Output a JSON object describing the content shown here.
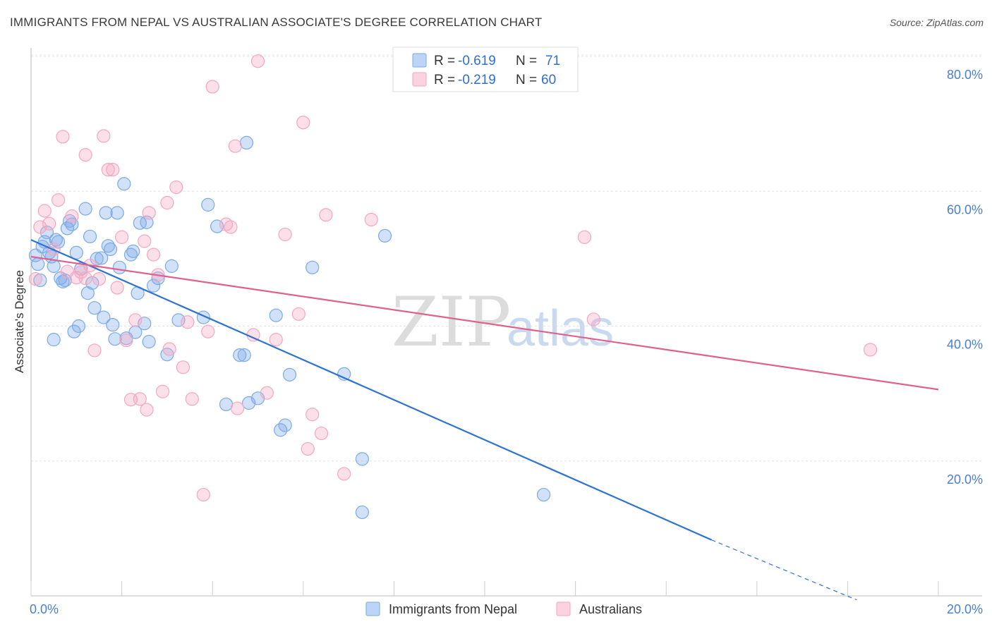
{
  "title": "IMMIGRANTS FROM NEPAL VS AUSTRALIAN ASSOCIATE'S DEGREE CORRELATION CHART",
  "source": "Source: ZipAtlas.com",
  "watermark": {
    "zip": "ZIP",
    "atlas": "atlas"
  },
  "legend": {
    "rows": [
      {
        "r_label": "R =",
        "r_value": "-0.619",
        "n_label": "N =",
        "n_value": "71"
      },
      {
        "r_label": "R =",
        "r_value": "-0.219",
        "n_label": "N =",
        "n_value": "60"
      }
    ]
  },
  "chart_data": {
    "type": "scatter",
    "title": "IMMIGRANTS FROM NEPAL VS AUSTRALIAN ASSOCIATE'S DEGREE CORRELATION CHART",
    "xlabel": "",
    "ylabel": "Associate's Degree",
    "xlim": [
      0,
      20
    ],
    "ylim": [
      0,
      82
    ],
    "x_ticks": [
      {
        "value": 0,
        "label": "0.0%"
      },
      {
        "value": 20,
        "label": "20.0%"
      }
    ],
    "y_ticks": [
      {
        "value": 20,
        "label": "20.0%"
      },
      {
        "value": 40,
        "label": "40.0%"
      },
      {
        "value": 60,
        "label": "60.0%"
      },
      {
        "value": 80,
        "label": "80.0%"
      }
    ],
    "grid": true,
    "legend_position": "bottom",
    "series": [
      {
        "name": "Immigrants from Nepal",
        "color": "#7aaae8",
        "line_color": "#2e72d2",
        "R": -0.619,
        "N": 71,
        "trend": {
          "x0": 0.0,
          "y0": 52.8,
          "x1": 15.0,
          "y1": 8.3,
          "dash_to_x": 18.2,
          "dash_to_y": -0.6
        },
        "points": [
          [
            0.1,
            50.5
          ],
          [
            0.15,
            49.2
          ],
          [
            0.2,
            46.8
          ],
          [
            0.25,
            51.8
          ],
          [
            0.3,
            52.5
          ],
          [
            0.35,
            53.9
          ],
          [
            0.4,
            50.9
          ],
          [
            0.45,
            50.3
          ],
          [
            0.5,
            48.9
          ],
          [
            0.55,
            52.8
          ],
          [
            0.6,
            52.5
          ],
          [
            0.65,
            47.1
          ],
          [
            0.7,
            46.6
          ],
          [
            0.75,
            46.8
          ],
          [
            0.8,
            54.5
          ],
          [
            0.85,
            55.6
          ],
          [
            0.9,
            55.1
          ],
          [
            0.95,
            39.2
          ],
          [
            1.0,
            50.9
          ],
          [
            1.05,
            40.0
          ],
          [
            1.1,
            48.5
          ],
          [
            1.2,
            57.4
          ],
          [
            1.25,
            44.9
          ],
          [
            1.3,
            53.3
          ],
          [
            1.35,
            46.4
          ],
          [
            1.4,
            42.7
          ],
          [
            1.45,
            50.0
          ],
          [
            1.55,
            50.1
          ],
          [
            1.6,
            41.3
          ],
          [
            1.65,
            56.8
          ],
          [
            1.7,
            51.9
          ],
          [
            1.75,
            51.4
          ],
          [
            1.8,
            40.2
          ],
          [
            1.85,
            38.1
          ],
          [
            1.9,
            56.8
          ],
          [
            1.95,
            48.7
          ],
          [
            2.05,
            61.1
          ],
          [
            2.1,
            38.2
          ],
          [
            2.2,
            50.6
          ],
          [
            2.25,
            51.1
          ],
          [
            2.3,
            39.1
          ],
          [
            2.35,
            44.9
          ],
          [
            2.4,
            55.3
          ],
          [
            2.5,
            40.4
          ],
          [
            2.55,
            55.4
          ],
          [
            2.6,
            37.7
          ],
          [
            2.7,
            46.0
          ],
          [
            2.8,
            47.1
          ],
          [
            3.0,
            35.8
          ],
          [
            3.1,
            48.9
          ],
          [
            3.25,
            40.9
          ],
          [
            3.8,
            41.3
          ],
          [
            3.9,
            58.0
          ],
          [
            4.1,
            54.8
          ],
          [
            4.3,
            28.4
          ],
          [
            4.6,
            35.7
          ],
          [
            4.7,
            35.7
          ],
          [
            4.75,
            67.2
          ],
          [
            4.8,
            28.6
          ],
          [
            5.0,
            29.3
          ],
          [
            5.4,
            41.6
          ],
          [
            5.5,
            24.6
          ],
          [
            5.6,
            25.3
          ],
          [
            5.7,
            32.8
          ],
          [
            6.2,
            48.7
          ],
          [
            6.9,
            32.9
          ],
          [
            7.3,
            20.3
          ],
          [
            7.3,
            12.4
          ],
          [
            7.8,
            53.4
          ],
          [
            11.3,
            15.0
          ],
          [
            0.5,
            38.0
          ]
        ]
      },
      {
        "name": "Australians",
        "color": "#f4a6c0",
        "line_color": "#e0608e",
        "R": -0.219,
        "N": 60,
        "trend": {
          "x0": 0.0,
          "y0": 50.3,
          "x1": 20.0,
          "y1": 30.6
        },
        "points": [
          [
            0.1,
            47.0
          ],
          [
            0.2,
            54.7
          ],
          [
            0.3,
            57.1
          ],
          [
            0.4,
            55.2
          ],
          [
            0.5,
            51.4
          ],
          [
            0.6,
            58.7
          ],
          [
            0.7,
            68.1
          ],
          [
            0.8,
            48.1
          ],
          [
            0.9,
            56.3
          ],
          [
            1.0,
            47.2
          ],
          [
            1.1,
            48.0
          ],
          [
            1.2,
            65.4
          ],
          [
            1.3,
            49.0
          ],
          [
            1.4,
            36.4
          ],
          [
            1.5,
            47.0
          ],
          [
            1.6,
            68.2
          ],
          [
            1.7,
            63.2
          ],
          [
            1.8,
            63.2
          ],
          [
            1.9,
            45.7
          ],
          [
            2.0,
            53.2
          ],
          [
            2.1,
            37.9
          ],
          [
            2.2,
            29.1
          ],
          [
            2.3,
            40.9
          ],
          [
            2.4,
            29.2
          ],
          [
            2.5,
            52.6
          ],
          [
            2.55,
            27.6
          ],
          [
            2.6,
            56.8
          ],
          [
            2.7,
            50.6
          ],
          [
            2.8,
            47.6
          ],
          [
            2.9,
            30.3
          ],
          [
            3.0,
            58.3
          ],
          [
            3.05,
            36.6
          ],
          [
            3.2,
            60.6
          ],
          [
            3.35,
            33.9
          ],
          [
            3.45,
            40.6
          ],
          [
            3.55,
            29.2
          ],
          [
            3.8,
            15.0
          ],
          [
            3.9,
            39.2
          ],
          [
            4.0,
            75.5
          ],
          [
            4.3,
            55.1
          ],
          [
            4.4,
            54.7
          ],
          [
            4.5,
            66.7
          ],
          [
            4.55,
            27.8
          ],
          [
            4.9,
            38.7
          ],
          [
            5.0,
            79.3
          ],
          [
            5.2,
            30.1
          ],
          [
            5.4,
            38.0
          ],
          [
            5.6,
            53.6
          ],
          [
            5.9,
            41.8
          ],
          [
            6.0,
            70.2
          ],
          [
            6.1,
            21.8
          ],
          [
            6.2,
            26.9
          ],
          [
            6.4,
            24.1
          ],
          [
            6.5,
            56.5
          ],
          [
            6.9,
            18.1
          ],
          [
            7.5,
            55.8
          ],
          [
            12.2,
            53.2
          ],
          [
            12.4,
            41.0
          ],
          [
            18.5,
            36.5
          ],
          [
            1.2,
            47.1
          ]
        ]
      }
    ]
  }
}
